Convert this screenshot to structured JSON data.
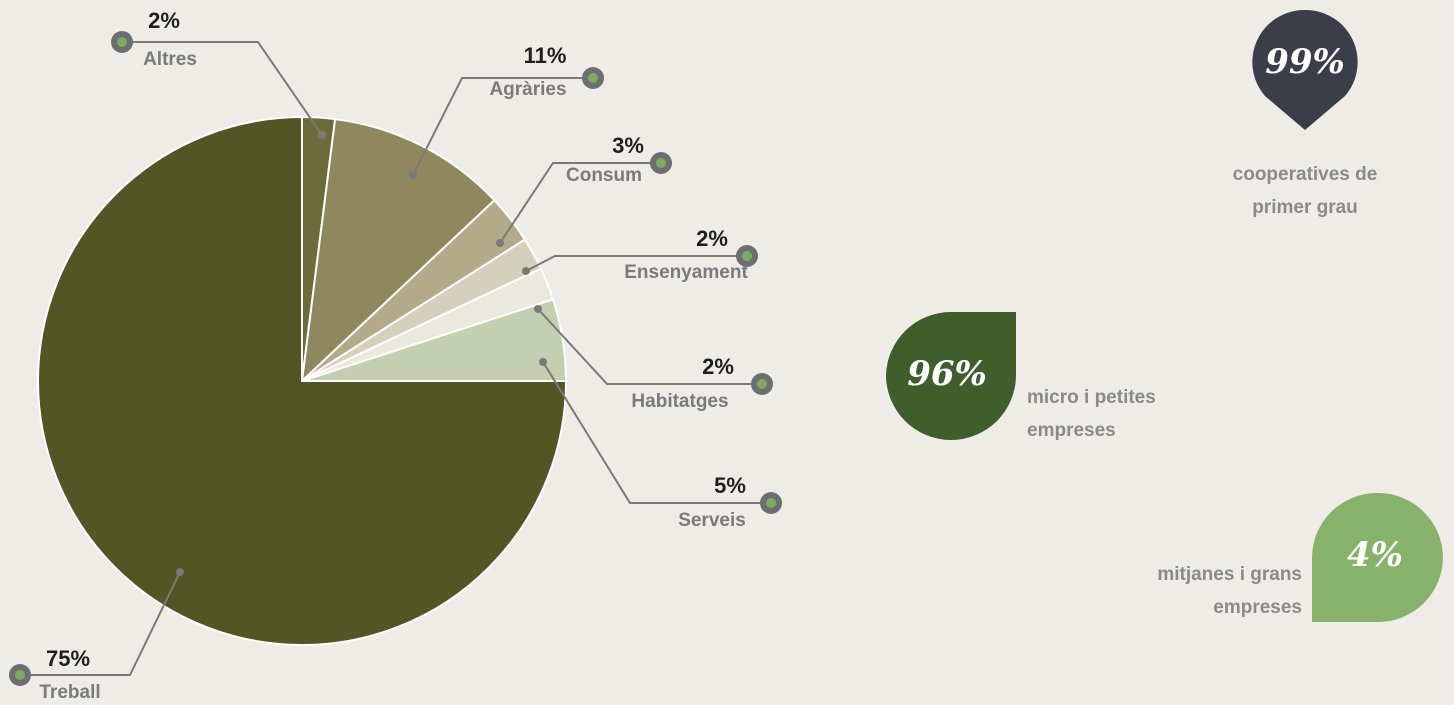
{
  "chart_data": {
    "type": "pie",
    "categories": [
      "Altres",
      "Agràries",
      "Consum",
      "Ensenyament",
      "Habitatges",
      "Serveis",
      "Treball"
    ],
    "values": [
      2,
      11,
      3,
      2,
      2,
      5,
      75
    ],
    "value_labels": [
      "2%",
      "11%",
      "3%",
      "2%",
      "2%",
      "5%",
      "75%"
    ],
    "colors": [
      "#6e6b3a",
      "#8f885e",
      "#b3aa8a",
      "#d4d0bc",
      "#ebe8de",
      "#c3cfb0",
      "#525524"
    ]
  },
  "stats": [
    {
      "value": 99,
      "value_label": "99%",
      "lines": [
        "cooperatives de",
        "primer grau"
      ],
      "color": "#3b3e48"
    },
    {
      "value": 96,
      "value_label": "96%",
      "lines": [
        "micro i petites",
        "empreses"
      ],
      "color": "#3f5e2c"
    },
    {
      "value": 4,
      "value_label": "4%",
      "lines": [
        "mitjanes i grans",
        "empreses"
      ],
      "color": "#86b26c"
    }
  ]
}
